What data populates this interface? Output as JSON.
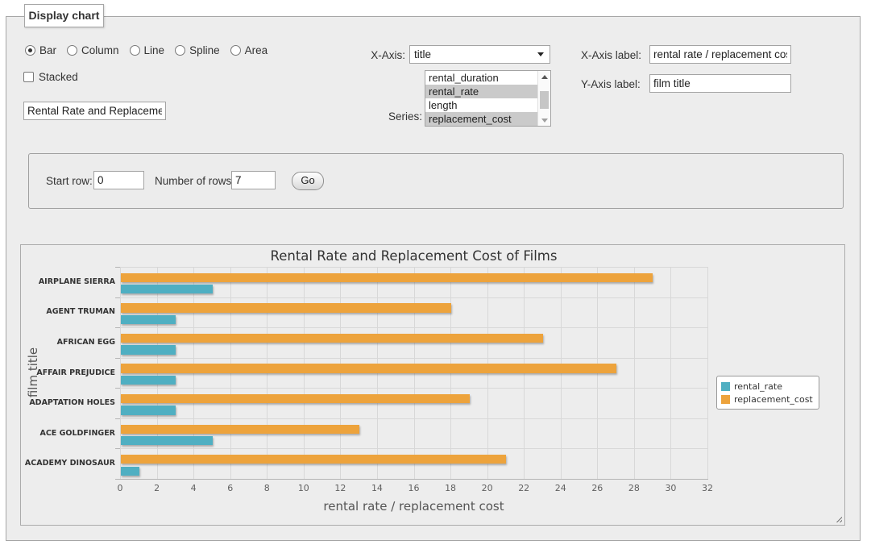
{
  "panel": {
    "legend": "Display chart"
  },
  "chart_type_options": [
    {
      "label": "Bar",
      "checked": true
    },
    {
      "label": "Column",
      "checked": false
    },
    {
      "label": "Line",
      "checked": false
    },
    {
      "label": "Spline",
      "checked": false
    },
    {
      "label": "Area",
      "checked": false
    }
  ],
  "stacked": {
    "label": "Stacked",
    "checked": false
  },
  "title_input": {
    "value": "Rental Rate and Replacemer"
  },
  "x_axis_select": {
    "label": "X-Axis:",
    "value": "title"
  },
  "series_list": {
    "label": "Series:",
    "options": [
      {
        "label": "rental_duration",
        "selected": false
      },
      {
        "label": "rental_rate",
        "selected": true
      },
      {
        "label": "length",
        "selected": false
      },
      {
        "label": "replacement_cost",
        "selected": true
      }
    ]
  },
  "x_axis_label_field": {
    "label": "X-Axis label:",
    "value": "rental rate / replacement cost"
  },
  "y_axis_label_field": {
    "label": "Y-Axis label:",
    "value": "film title"
  },
  "row_form": {
    "start_row_label": "Start row:",
    "start_row_value": "0",
    "num_rows_label": "Number of rows:",
    "num_rows_value": "7",
    "go_label": "Go"
  },
  "chart_data": {
    "type": "bar",
    "title": "Rental Rate and Replacement Cost of Films",
    "categories": [
      "AIRPLANE SIERRA",
      "AGENT TRUMAN",
      "AFRICAN EGG",
      "AFFAIR PREJUDICE",
      "ADAPTATION HOLES",
      "ACE GOLDFINGER",
      "ACADEMY DINOSAUR"
    ],
    "series": [
      {
        "name": "rental_rate",
        "color": "#4FAFC2",
        "values": [
          4.99,
          2.99,
          2.99,
          2.99,
          2.99,
          4.99,
          0.99
        ]
      },
      {
        "name": "replacement_cost",
        "color": "#EDA33C",
        "values": [
          28.99,
          17.99,
          22.99,
          26.99,
          18.99,
          12.99,
          20.99
        ]
      }
    ],
    "bar_row_order": [
      1,
      0
    ],
    "xlabel": "rental rate / replacement cost",
    "ylabel": "film title",
    "xlim": [
      0,
      32
    ],
    "xticks": [
      0,
      2,
      4,
      6,
      8,
      10,
      12,
      14,
      16,
      18,
      20,
      22,
      24,
      26,
      28,
      30,
      32
    ],
    "grid": true,
    "legend_position": "right-middle"
  }
}
